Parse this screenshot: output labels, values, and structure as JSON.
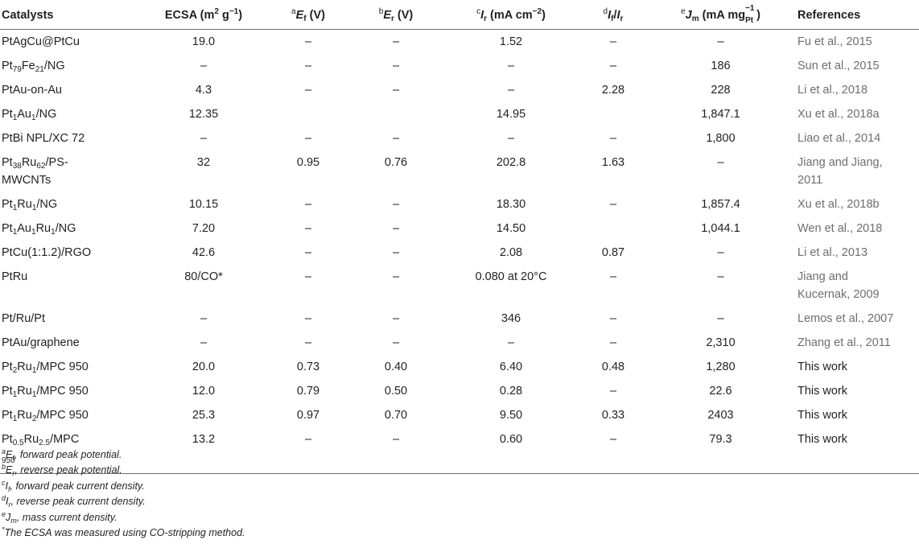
{
  "headers": {
    "catalysts": "Catalysts",
    "ecsa_pre": "ECSA (m",
    "ecsa_sup": "2",
    "ecsa_mid": " g",
    "ecsa_sup2": "−1",
    "ecsa_post": ")",
    "ef_sup": "a",
    "ef_main": "E",
    "ef_sub": "f",
    "ef_unit": " (V)",
    "er_sup": "b",
    "er_main": "E",
    "er_sub": "r",
    "er_unit": " (V)",
    "if_sup": "c",
    "if_main": "I",
    "if_sub": "r",
    "if_unit_pre": " (mA cm",
    "if_unit_sup": "−2",
    "if_unit_post": ")",
    "ratio_sup": "d",
    "ratio_a": "I",
    "ratio_a_sub": "f",
    "ratio_slash": "/",
    "ratio_b": "I",
    "ratio_b_sub": "r",
    "jm_sup": "e",
    "jm_main": "J",
    "jm_sub": "m",
    "jm_unit_pre": " (mA mg",
    "jm_unit_sup": "−1",
    "jm_unit_sub": "Pt",
    "jm_unit_post": ")",
    "references": "References"
  },
  "rows": [
    {
      "cat": [
        "PtAgCu@PtCu"
      ],
      "ecsa": "19.0",
      "ef": "–",
      "er": "–",
      "ir": "1.52",
      "ratio": "–",
      "jm": "–",
      "ref": [
        "Fu et al., 2015"
      ]
    },
    {
      "cat": [
        "Pt",
        "79",
        "Fe",
        "21",
        "/NG"
      ],
      "ecsa": "–",
      "ef": "–",
      "er": "–",
      "ir": "–",
      "ratio": "–",
      "jm": "186",
      "ref": [
        "Sun et al., 2015"
      ]
    },
    {
      "cat": [
        "PtAu-on-Au"
      ],
      "ecsa": "4.3",
      "ef": "–",
      "er": "–",
      "ir": "–",
      "ratio": "2.28",
      "jm": "228",
      "ref": [
        "Li et al., 2018"
      ]
    },
    {
      "cat": [
        "Pt",
        "1",
        "Au",
        "1",
        "/NG"
      ],
      "ecsa": "12.35",
      "ef": "",
      "er": "",
      "ir": "14.95",
      "ratio": "",
      "jm": "1,847.1",
      "ref": [
        "Xu et al., 2018a"
      ]
    },
    {
      "cat": [
        "PtBi NPL/XC 72"
      ],
      "ecsa": "–",
      "ef": "–",
      "er": "–",
      "ir": "–",
      "ratio": "–",
      "jm": "1,800",
      "ref": [
        "Liao et al., 2014"
      ]
    },
    {
      "cat": [
        "Pt",
        "38",
        "Ru",
        "62",
        "/PS-",
        "MWCNTs"
      ],
      "ecsa": "32",
      "ef": "0.95",
      "er": "0.76",
      "ir": "202.8",
      "ratio": "1.63",
      "jm": "–",
      "ref": [
        "Jiang and Jiang,",
        "2011"
      ]
    },
    {
      "cat": [
        "Pt",
        "1",
        "Ru",
        "1",
        "/NG"
      ],
      "ecsa": "10.15",
      "ef": "–",
      "er": "–",
      "ir": "18.30",
      "ratio": "–",
      "jm": "1,857.4",
      "ref": [
        "Xu et al., 2018b"
      ]
    },
    {
      "cat": [
        "Pt",
        "1",
        "Au",
        "1",
        "Ru",
        "1",
        "/NG"
      ],
      "ecsa": "7.20",
      "ef": "–",
      "er": "–",
      "ir": "14.50",
      "ratio": "",
      "jm": "1,044.1",
      "ref": [
        "Wen et al., 2018"
      ]
    },
    {
      "cat": [
        "PtCu(1:1.2)/RGO"
      ],
      "ecsa": "42.6",
      "ef": "–",
      "er": "–",
      "ir": "2.08",
      "ratio": "0.87",
      "jm": "–",
      "ref": [
        "Li et al., 2013"
      ]
    },
    {
      "cat": [
        "PtRu"
      ],
      "ecsa": "80/CO*",
      "ef": "–",
      "er": "–",
      "ir": "0.080 at 20°C",
      "ratio": "–",
      "jm": "–",
      "ref": [
        "Jiang and",
        "Kucernak, 2009"
      ]
    },
    {
      "cat": [
        "Pt/Ru/Pt"
      ],
      "ecsa": "–",
      "ef": "–",
      "er": "–",
      "ir": "346",
      "ratio": "–",
      "jm": "–",
      "ref": [
        "Lemos et al., 2007"
      ]
    },
    {
      "cat": [
        "PtAu/graphene"
      ],
      "ecsa": "–",
      "ef": "–",
      "er": "–",
      "ir": "–",
      "ratio": "–",
      "jm": "2,310",
      "ref": [
        "Zhang et al., 2011"
      ]
    },
    {
      "cat": [
        "Pt",
        "2",
        "Ru",
        "1",
        "/MPC 950"
      ],
      "ecsa": "20.0",
      "ef": "0.73",
      "er": "0.40",
      "ir": "6.40",
      "ratio": "0.48",
      "jm": "1,280",
      "ref": [
        "This work"
      ]
    },
    {
      "cat": [
        "Pt",
        "1",
        "Ru",
        "1",
        "/MPC 950"
      ],
      "ecsa": "12.0",
      "ef": "0.79",
      "er": "0.50",
      "ir": "0.28",
      "ratio": "–",
      "jm": "22.6",
      "ref": [
        "This work"
      ]
    },
    {
      "cat": [
        "Pt",
        "1",
        "Ru",
        "2",
        "/MPC 950"
      ],
      "ecsa": "25.3",
      "ef": "0.97",
      "er": "0.70",
      "ir": "9.50",
      "ratio": "0.33",
      "jm": "2403",
      "ref": [
        "This work"
      ]
    },
    {
      "cat": [
        "Pt",
        "0.5",
        "Ru",
        "2.5",
        "/MPC",
        "950"
      ],
      "ecsa": "13.2",
      "ef": "–",
      "er": "–",
      "ir": "0.60",
      "ratio": "–",
      "jm": "79.3",
      "ref": [
        "This work"
      ]
    }
  ],
  "notes": [
    {
      "sup": "a",
      "sym": "E",
      "sub": "f",
      "text": ", forward peak potential."
    },
    {
      "sup": "b",
      "sym": "E",
      "sub": "r",
      "text": ", reverse peak potential."
    },
    {
      "sup": "c",
      "sym": "I",
      "sub": "f",
      "text": ", forward peak current density."
    },
    {
      "sup": "d",
      "sym": "I",
      "sub": "r",
      "text": ", reverse peak current density."
    },
    {
      "sup": "e",
      "sym": "J",
      "sub": "m",
      "text": ", mass current density."
    },
    {
      "sup": "*",
      "sym": "",
      "sub": "",
      "text": "The ECSA was measured using CO-stripping method."
    }
  ]
}
